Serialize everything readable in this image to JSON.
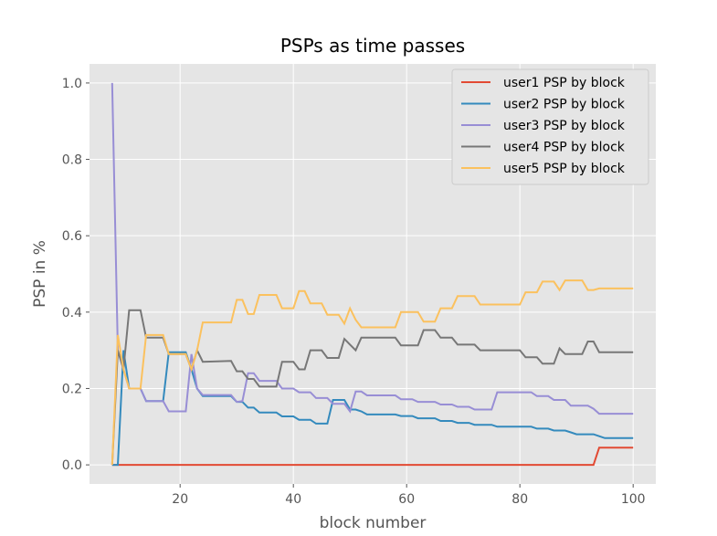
{
  "chart_data": {
    "type": "line",
    "title": "PSPs as time passes",
    "xlabel": "block number",
    "ylabel": "PSP in %",
    "xlim": [
      4,
      104
    ],
    "ylim": [
      -0.05,
      1.05
    ],
    "xticks": [
      20,
      40,
      60,
      80,
      100
    ],
    "yticks": [
      0.0,
      0.2,
      0.4,
      0.6,
      0.8,
      1.0
    ],
    "xtick_labels": [
      "20",
      "40",
      "60",
      "80",
      "100"
    ],
    "ytick_labels": [
      "0.0",
      "0.2",
      "0.4",
      "0.6",
      "0.8",
      "1.0"
    ],
    "grid": true,
    "legend_position": "top-right",
    "background_color": "#e5e5e5",
    "series": [
      {
        "name": "user1 PSP by block",
        "color": "#e24a33",
        "points": [
          [
            8,
            0
          ],
          [
            9,
            0
          ],
          [
            93,
            0
          ],
          [
            94,
            0.045
          ],
          [
            100,
            0.045
          ]
        ]
      },
      {
        "name": "user2 PSP by block",
        "color": "#348abd",
        "points": [
          [
            8,
            0
          ],
          [
            9,
            0
          ],
          [
            10,
            0.3
          ],
          [
            11,
            0.2
          ],
          [
            13,
            0.2
          ],
          [
            14,
            0.167
          ],
          [
            17,
            0.167
          ],
          [
            18,
            0.295
          ],
          [
            21,
            0.295
          ],
          [
            22,
            0.25
          ],
          [
            23,
            0.2
          ],
          [
            24,
            0.18
          ],
          [
            29,
            0.18
          ],
          [
            30,
            0.165
          ],
          [
            31,
            0.165
          ],
          [
            32,
            0.15
          ],
          [
            33,
            0.15
          ],
          [
            34,
            0.137
          ],
          [
            37,
            0.137
          ],
          [
            38,
            0.127
          ],
          [
            40,
            0.127
          ],
          [
            41,
            0.118
          ],
          [
            43,
            0.118
          ],
          [
            44,
            0.108
          ],
          [
            46,
            0.108
          ],
          [
            47,
            0.17
          ],
          [
            49,
            0.17
          ],
          [
            50,
            0.145
          ],
          [
            51,
            0.145
          ],
          [
            52,
            0.14
          ],
          [
            53,
            0.132
          ],
          [
            58,
            0.132
          ],
          [
            59,
            0.128
          ],
          [
            61,
            0.128
          ],
          [
            62,
            0.122
          ],
          [
            65,
            0.122
          ],
          [
            66,
            0.115
          ],
          [
            68,
            0.115
          ],
          [
            69,
            0.11
          ],
          [
            71,
            0.11
          ],
          [
            72,
            0.105
          ],
          [
            75,
            0.105
          ],
          [
            76,
            0.1
          ],
          [
            82,
            0.1
          ],
          [
            83,
            0.095
          ],
          [
            85,
            0.095
          ],
          [
            86,
            0.09
          ],
          [
            88,
            0.09
          ],
          [
            89,
            0.085
          ],
          [
            90,
            0.08
          ],
          [
            93,
            0.08
          ],
          [
            94,
            0.075
          ],
          [
            95,
            0.07
          ],
          [
            100,
            0.07
          ]
        ]
      },
      {
        "name": "user3 PSP by block",
        "color": "#988ed5",
        "points": [
          [
            8,
            1.0
          ],
          [
            9,
            0.3
          ],
          [
            10,
            0.25
          ],
          [
            11,
            0.2
          ],
          [
            13,
            0.2
          ],
          [
            14,
            0.167
          ],
          [
            17,
            0.167
          ],
          [
            18,
            0.14
          ],
          [
            21,
            0.14
          ],
          [
            22,
            0.29
          ],
          [
            23,
            0.2
          ],
          [
            24,
            0.183
          ],
          [
            29,
            0.183
          ],
          [
            30,
            0.165
          ],
          [
            31,
            0.167
          ],
          [
            32,
            0.24
          ],
          [
            33,
            0.24
          ],
          [
            34,
            0.22
          ],
          [
            37,
            0.22
          ],
          [
            38,
            0.2
          ],
          [
            40,
            0.2
          ],
          [
            41,
            0.19
          ],
          [
            43,
            0.19
          ],
          [
            44,
            0.175
          ],
          [
            46,
            0.175
          ],
          [
            47,
            0.16
          ],
          [
            49,
            0.16
          ],
          [
            50,
            0.14
          ],
          [
            51,
            0.192
          ],
          [
            52,
            0.192
          ],
          [
            53,
            0.182
          ],
          [
            58,
            0.182
          ],
          [
            59,
            0.172
          ],
          [
            61,
            0.172
          ],
          [
            62,
            0.165
          ],
          [
            65,
            0.165
          ],
          [
            66,
            0.158
          ],
          [
            68,
            0.158
          ],
          [
            69,
            0.152
          ],
          [
            71,
            0.152
          ],
          [
            72,
            0.145
          ],
          [
            75,
            0.145
          ],
          [
            76,
            0.19
          ],
          [
            82,
            0.19
          ],
          [
            83,
            0.18
          ],
          [
            85,
            0.18
          ],
          [
            86,
            0.17
          ],
          [
            88,
            0.17
          ],
          [
            89,
            0.155
          ],
          [
            92,
            0.155
          ],
          [
            93,
            0.147
          ],
          [
            94,
            0.134
          ],
          [
            100,
            0.134
          ]
        ]
      },
      {
        "name": "user4 PSP by block",
        "color": "#777777",
        "points": [
          [
            8,
            0
          ],
          [
            9,
            0.3
          ],
          [
            10,
            0.25
          ],
          [
            11,
            0.405
          ],
          [
            13,
            0.405
          ],
          [
            14,
            0.333
          ],
          [
            17,
            0.333
          ],
          [
            18,
            0.29
          ],
          [
            21,
            0.29
          ],
          [
            22,
            0.25
          ],
          [
            23,
            0.3
          ],
          [
            24,
            0.27
          ],
          [
            29,
            0.272
          ],
          [
            30,
            0.245
          ],
          [
            31,
            0.245
          ],
          [
            32,
            0.225
          ],
          [
            33,
            0.225
          ],
          [
            34,
            0.205
          ],
          [
            37,
            0.205
          ],
          [
            38,
            0.27
          ],
          [
            40,
            0.27
          ],
          [
            41,
            0.25
          ],
          [
            42,
            0.25
          ],
          [
            43,
            0.3
          ],
          [
            45,
            0.3
          ],
          [
            46,
            0.28
          ],
          [
            48,
            0.28
          ],
          [
            49,
            0.33
          ],
          [
            50,
            0.315
          ],
          [
            51,
            0.3
          ],
          [
            52,
            0.333
          ],
          [
            58,
            0.333
          ],
          [
            59,
            0.313
          ],
          [
            62,
            0.313
          ],
          [
            63,
            0.353
          ],
          [
            65,
            0.353
          ],
          [
            66,
            0.333
          ],
          [
            68,
            0.333
          ],
          [
            69,
            0.315
          ],
          [
            72,
            0.315
          ],
          [
            73,
            0.3
          ],
          [
            80,
            0.3
          ],
          [
            81,
            0.282
          ],
          [
            83,
            0.282
          ],
          [
            84,
            0.265
          ],
          [
            86,
            0.265
          ],
          [
            87,
            0.305
          ],
          [
            88,
            0.29
          ],
          [
            91,
            0.29
          ],
          [
            92,
            0.323
          ],
          [
            93,
            0.323
          ],
          [
            94,
            0.295
          ],
          [
            100,
            0.295
          ]
        ]
      },
      {
        "name": "user5 PSP by block",
        "color": "#fbc15e",
        "points": [
          [
            8,
            0
          ],
          [
            9,
            0.34
          ],
          [
            10,
            0.25
          ],
          [
            11,
            0.2
          ],
          [
            13,
            0.2
          ],
          [
            14,
            0.34
          ],
          [
            17,
            0.34
          ],
          [
            18,
            0.29
          ],
          [
            21,
            0.29
          ],
          [
            22,
            0.25
          ],
          [
            23,
            0.3
          ],
          [
            24,
            0.373
          ],
          [
            29,
            0.373
          ],
          [
            30,
            0.432
          ],
          [
            31,
            0.432
          ],
          [
            32,
            0.395
          ],
          [
            33,
            0.395
          ],
          [
            34,
            0.445
          ],
          [
            37,
            0.445
          ],
          [
            38,
            0.41
          ],
          [
            40,
            0.41
          ],
          [
            41,
            0.455
          ],
          [
            42,
            0.455
          ],
          [
            43,
            0.423
          ],
          [
            45,
            0.423
          ],
          [
            46,
            0.393
          ],
          [
            48,
            0.393
          ],
          [
            49,
            0.37
          ],
          [
            50,
            0.41
          ],
          [
            51,
            0.38
          ],
          [
            52,
            0.36
          ],
          [
            58,
            0.36
          ],
          [
            59,
            0.4
          ],
          [
            62,
            0.4
          ],
          [
            63,
            0.375
          ],
          [
            65,
            0.375
          ],
          [
            66,
            0.41
          ],
          [
            68,
            0.41
          ],
          [
            69,
            0.442
          ],
          [
            72,
            0.442
          ],
          [
            73,
            0.42
          ],
          [
            80,
            0.42
          ],
          [
            81,
            0.452
          ],
          [
            83,
            0.452
          ],
          [
            84,
            0.48
          ],
          [
            86,
            0.48
          ],
          [
            87,
            0.458
          ],
          [
            88,
            0.483
          ],
          [
            91,
            0.483
          ],
          [
            92,
            0.458
          ],
          [
            93,
            0.458
          ],
          [
            94,
            0.462
          ],
          [
            100,
            0.462
          ]
        ]
      }
    ]
  }
}
